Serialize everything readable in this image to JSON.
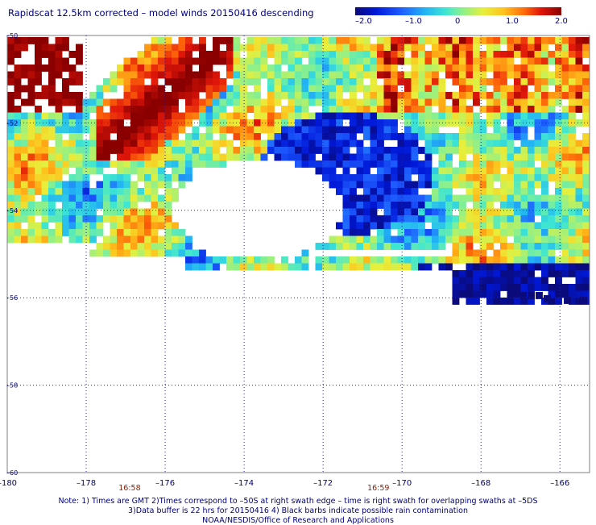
{
  "title": "Rapidscat 12.5km corrected – model winds 20150416 descending",
  "colorbar": {
    "ticks": [
      "–2.0",
      "–1.0",
      "0",
      "1.0",
      "2.0"
    ],
    "range": [
      -2.0,
      2.0
    ],
    "colors": [
      "#0a0a7a",
      "#0018d8",
      "#1e5cff",
      "#22b4f4",
      "#3ee6d2",
      "#8cf08c",
      "#e6f03c",
      "#ffc21c",
      "#ff6a0a",
      "#e0160a",
      "#8a0000"
    ]
  },
  "map": {
    "lon_labels": [
      "–180",
      "–178",
      "–176",
      "–174",
      "–172",
      "–170",
      "–168",
      "–166"
    ],
    "lat_labels": [
      "–50",
      "–52",
      "–54",
      "–56",
      "–58",
      "–60"
    ],
    "times": [
      {
        "label": "16:58",
        "lon": -176.9
      },
      {
        "label": "16:59",
        "lon": -170.6
      }
    ],
    "gridline_color": "#2020a0",
    "time_color": "#8b1a00"
  },
  "notes": {
    "line1": "Note: 1) Times are GMT 2)Times correspond to –50S at right swath edge – time is right swath for overlapping swaths at –5DS",
    "line2": "3)Data buffer is 22 hrs for 20150416 4) Black barbs indicate possible rain contamination",
    "line3": "NOAA/NESDIS/Office of Research and Applications"
  }
}
